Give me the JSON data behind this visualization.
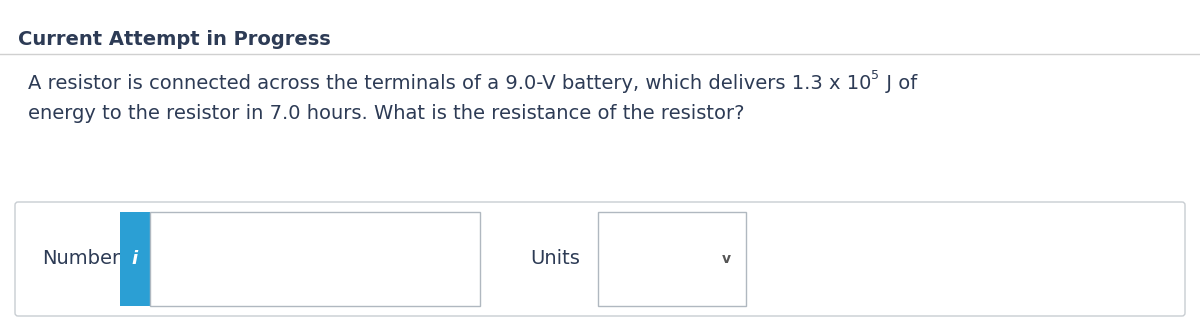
{
  "title": "Current Attempt in Progress",
  "title_fontsize": 14,
  "title_color": "#2d3b55",
  "body_line1": "A resistor is connected across the terminals of a 9.0-V battery, which delivers 1.3 x 10",
  "body_superscript": "5",
  "body_line1_suffix": " J of",
  "body_line2": "energy to the resistor in 7.0 hours. What is the resistance of the resistor?",
  "body_fontsize": 14,
  "body_color": "#2d3b55",
  "number_label": "Number",
  "units_label": "Units",
  "label_fontsize": 14,
  "info_btn_color": "#2b9fd4",
  "info_btn_text": "i",
  "background_color": "#ffffff",
  "separator_color": "#d0d0d0",
  "input_box_color": "#ffffff",
  "input_box_border": "#b0b8c0",
  "outer_box_border": "#c8cdd2",
  "chevron": "v"
}
